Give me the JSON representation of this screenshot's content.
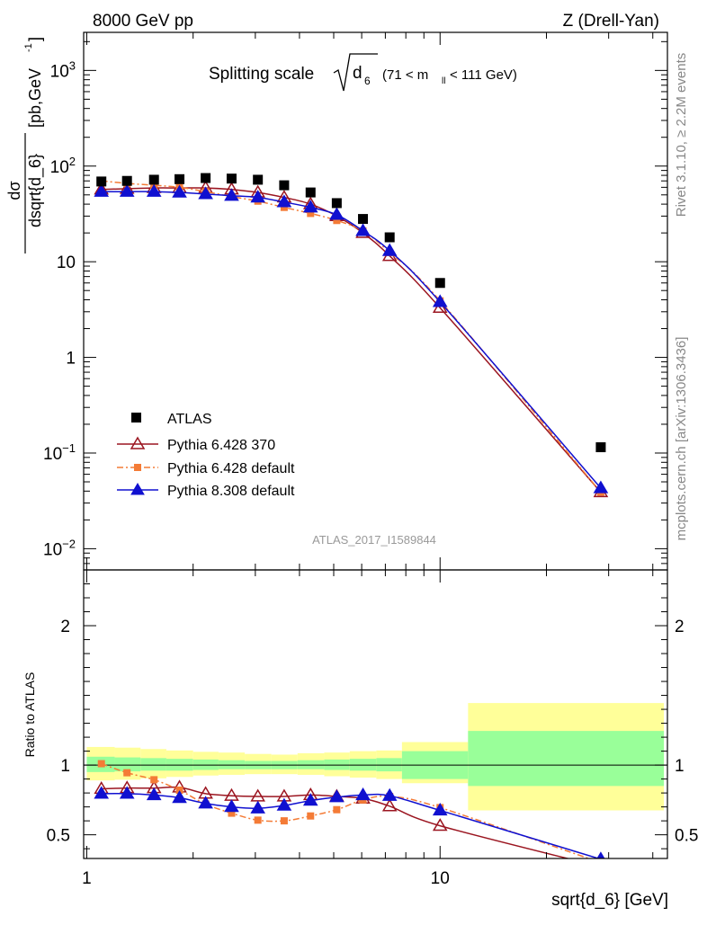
{
  "header": {
    "left": "8000 GeV pp",
    "right": "Z (Drell-Yan)"
  },
  "side_labels": {
    "rivet": "Rivet 3.1.10, ≥ 2.2M events",
    "mcplots": "mcplots.cern.ch [arXiv:1306.3436]"
  },
  "title": {
    "text": "Splitting scale",
    "sqrt_var": "d",
    "sqrt_sub": "6",
    "cut_prefix": "(71 < m",
    "cut_sub": "ll",
    "cut_suffix": " < 111 GeV)"
  },
  "watermark": "ATLAS_2017_I1589844",
  "main_ylabel": {
    "numerator": "dσ",
    "denominator": "dsqrt{d_6}",
    "units": "[pb,GeV",
    "units_sup": "-1",
    "units_end": "]"
  },
  "ratio_ylabel": "Ratio to ATLAS",
  "xlabel": "sqrt{d_6} [GeV]",
  "legend": [
    {
      "name": "ATLAS"
    },
    {
      "name": "Pythia 6.428 370"
    },
    {
      "name": "Pythia 6.428 default"
    },
    {
      "name": "Pythia 8.308 default"
    }
  ],
  "colors": {
    "atlas": "#000000",
    "p6_370": "#9b1520",
    "p6_default": "#f47b36",
    "p8_default": "#1010d0",
    "band_inner": "#99ff99",
    "band_outer": "#ffff99"
  },
  "chart_data": {
    "type": "line",
    "x_scale": "log",
    "y_scale_main": "log",
    "xlim": [
      0.98,
      44
    ],
    "ylim_main": [
      0.006,
      2500
    ],
    "ylim_ratio": [
      0.33,
      2.4
    ],
    "x_ticks": [
      {
        "v": 1,
        "label": "1"
      },
      {
        "v": 10,
        "label": "10"
      }
    ],
    "y_ticks_main": [
      {
        "v": 0.01,
        "base": "10",
        "exp": "−2"
      },
      {
        "v": 0.1,
        "base": "10",
        "exp": "−1"
      },
      {
        "v": 1,
        "base": "1",
        "exp": ""
      },
      {
        "v": 10,
        "base": "10",
        "exp": ""
      },
      {
        "v": 100,
        "base": "10",
        "exp": "2"
      },
      {
        "v": 1000,
        "base": "10",
        "exp": "3"
      }
    ],
    "y_ticks_ratio": [
      {
        "v": 0.5,
        "label": "0.5"
      },
      {
        "v": 1,
        "label": "1"
      },
      {
        "v": 2,
        "label": "2"
      }
    ],
    "x": [
      1.1,
      1.3,
      1.55,
      1.83,
      2.17,
      2.57,
      3.05,
      3.62,
      4.3,
      5.1,
      6.05,
      7.2,
      10.0,
      28.5
    ],
    "atlas": [
      69,
      70,
      72,
      73,
      75,
      74,
      72,
      63,
      53,
      41,
      28,
      18,
      6.0,
      0.115
    ],
    "series": [
      {
        "name": "Pythia 6.428 370",
        "key": "p6_370",
        "values": [
          57,
          58,
          59,
          59,
          59,
          57,
          53,
          47,
          40,
          30,
          20,
          11.5,
          3.3,
          0.039
        ],
        "ratio": [
          0.83,
          0.835,
          0.835,
          0.84,
          0.795,
          0.78,
          0.775,
          0.775,
          0.785,
          0.775,
          0.76,
          0.705,
          0.565,
          0.27
        ]
      },
      {
        "name": "Pythia 6.428 default",
        "key": "p6_default",
        "values": [
          70,
          66,
          63,
          60,
          54,
          48,
          43,
          37,
          32,
          27,
          21,
          12.5,
          3.9,
          0.039
        ],
        "ratio": [
          1.01,
          0.945,
          0.895,
          0.82,
          0.72,
          0.655,
          0.605,
          0.6,
          0.635,
          0.68,
          0.75,
          0.775,
          0.695,
          0.3
        ]
      },
      {
        "name": "Pythia 8.308 default",
        "key": "p8_default",
        "values": [
          54,
          54,
          54,
          53,
          51,
          49,
          47,
          42,
          37,
          31,
          21,
          13,
          3.8,
          0.043
        ],
        "ratio": [
          0.795,
          0.795,
          0.785,
          0.765,
          0.725,
          0.7,
          0.69,
          0.71,
          0.745,
          0.77,
          0.785,
          0.78,
          0.675,
          0.325
        ]
      }
    ],
    "band_edges": [
      1.0,
      1.2,
      1.42,
      1.68,
      2.0,
      2.36,
      2.8,
      3.33,
      3.95,
      4.7,
      5.55,
      6.6,
      7.8,
      12.0,
      43.0
    ],
    "band_inner": [
      [
        0.95,
        1.06
      ],
      [
        0.955,
        1.055
      ],
      [
        0.96,
        1.05
      ],
      [
        0.96,
        1.045
      ],
      [
        0.965,
        1.04
      ],
      [
        0.97,
        1.035
      ],
      [
        0.97,
        1.03
      ],
      [
        0.97,
        1.03
      ],
      [
        0.97,
        1.035
      ],
      [
        0.965,
        1.04
      ],
      [
        0.96,
        1.045
      ],
      [
        0.955,
        1.05
      ],
      [
        0.9,
        1.1
      ],
      [
        0.85,
        1.245
      ]
    ],
    "band_outer": [
      [
        0.89,
        1.13
      ],
      [
        0.895,
        1.125
      ],
      [
        0.905,
        1.115
      ],
      [
        0.915,
        1.105
      ],
      [
        0.925,
        1.095
      ],
      [
        0.93,
        1.09
      ],
      [
        0.935,
        1.08
      ],
      [
        0.935,
        1.075
      ],
      [
        0.93,
        1.085
      ],
      [
        0.92,
        1.09
      ],
      [
        0.91,
        1.1
      ],
      [
        0.9,
        1.105
      ],
      [
        0.87,
        1.165
      ],
      [
        0.675,
        1.445
      ]
    ]
  }
}
